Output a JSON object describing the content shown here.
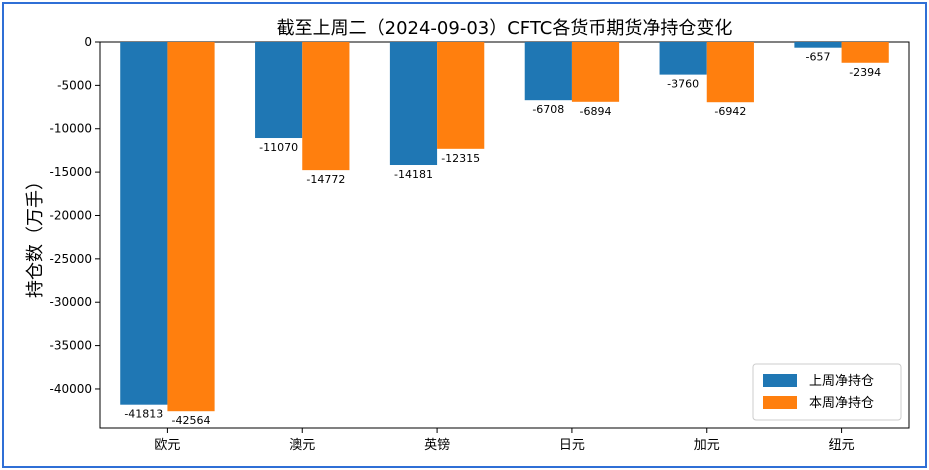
{
  "chart_data": {
    "type": "bar",
    "title": "截至上周二（2024-09-03）CFTC各货币期货净持仓变化",
    "xlabel": "",
    "ylabel": "持仓数（万手）",
    "categories": [
      "欧元",
      "澳元",
      "英镑",
      "日元",
      "加元",
      "纽元"
    ],
    "series": [
      {
        "name": "上周净持仓",
        "color": "#1f77b4",
        "values": [
          -41813,
          -11070,
          -14181,
          -6708,
          -3760,
          -657
        ]
      },
      {
        "name": "本周净持仓",
        "color": "#ff7f0e",
        "values": [
          -42564,
          -14772,
          -12315,
          -6894,
          -6942,
          -2394
        ]
      }
    ],
    "ylim": [
      -44500,
      0
    ],
    "yticks": [
      0,
      -5000,
      -10000,
      -15000,
      -20000,
      -25000,
      -30000,
      -35000,
      -40000
    ],
    "ytick_labels": [
      "0",
      "-5000",
      "-10000",
      "-15000",
      "-20000",
      "-25000",
      "-30000",
      "-35000",
      "-40000"
    ],
    "grid": false,
    "legend_position": "bottom-right"
  }
}
